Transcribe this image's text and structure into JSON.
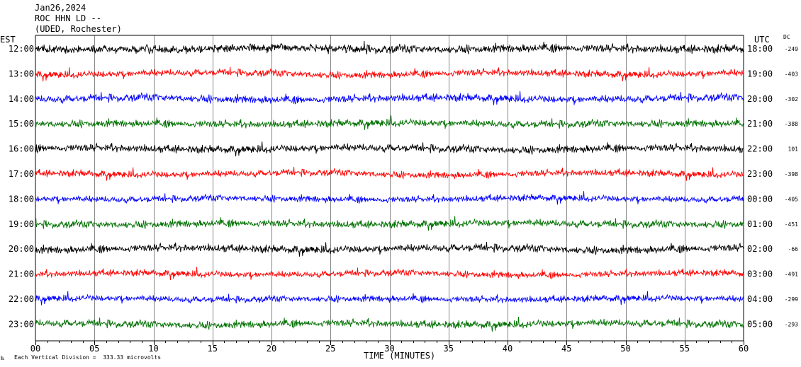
{
  "header": {
    "date": "Jan26,2024",
    "station": "ROC HHN LD --",
    "location": "(UDED, Rochester)"
  },
  "left_axis_title": "EST",
  "right_axis_title": "UTC",
  "dc_title": "DC",
  "x_axis_title": "TIME (MINUTES)",
  "footer": {
    "mark": "‰",
    "scale_note": "Each Vertical Division =  333.33 microvolts"
  },
  "colors": {
    "black": "#000000",
    "red": "#ff0000",
    "blue": "#0000ff",
    "green": "#007000",
    "grid": "#000000"
  },
  "chart_data": {
    "type": "line",
    "title": "",
    "xlabel": "TIME (MINUTES)",
    "xlim": [
      0,
      60
    ],
    "x_ticks": [
      "00",
      "05",
      "10",
      "15",
      "20",
      "25",
      "30",
      "35",
      "40",
      "45",
      "50",
      "55",
      "60"
    ],
    "grid": true,
    "series": [
      {
        "est": "12:00",
        "utc": "18:00",
        "dc": "-249",
        "color": "black",
        "amp": 1.3
      },
      {
        "est": "13:00",
        "utc": "19:00",
        "dc": "-403",
        "color": "red",
        "amp": 1.1
      },
      {
        "est": "14:00",
        "utc": "20:00",
        "dc": "-302",
        "color": "blue",
        "amp": 1.2
      },
      {
        "est": "15:00",
        "utc": "21:00",
        "dc": "-388",
        "color": "green",
        "amp": 1.15
      },
      {
        "est": "16:00",
        "utc": "22:00",
        "dc": "101",
        "color": "black",
        "amp": 1.2
      },
      {
        "est": "17:00",
        "utc": "23:00",
        "dc": "-398",
        "color": "red",
        "amp": 1.05
      },
      {
        "est": "18:00",
        "utc": "00:00",
        "dc": "-405",
        "color": "blue",
        "amp": 1.0
      },
      {
        "est": "19:00",
        "utc": "01:00",
        "dc": "-451",
        "color": "green",
        "amp": 1.15
      },
      {
        "est": "20:00",
        "utc": "02:00",
        "dc": "-66",
        "color": "black",
        "amp": 1.2
      },
      {
        "est": "21:00",
        "utc": "03:00",
        "dc": "-491",
        "color": "red",
        "amp": 1.0
      },
      {
        "est": "22:00",
        "utc": "04:00",
        "dc": "-299",
        "color": "blue",
        "amp": 1.0
      },
      {
        "est": "23:00",
        "utc": "05:00",
        "dc": "-293",
        "color": "green",
        "amp": 1.15
      }
    ]
  }
}
